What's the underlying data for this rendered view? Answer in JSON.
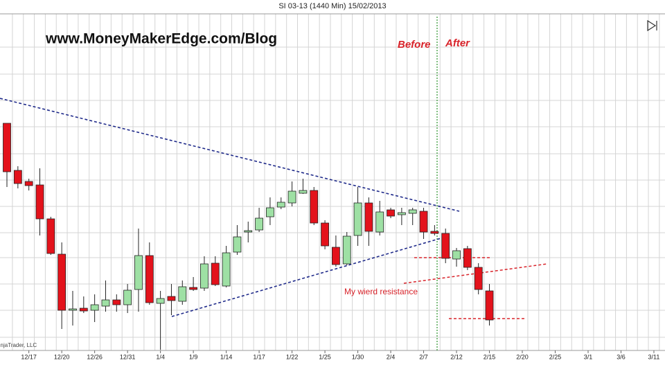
{
  "chart_data": {
    "type": "candlestick",
    "title": "SI 03-13 (1440 Min)  15/02/2013",
    "annotations": {
      "watermark": "www.MoneyMakerEdge.com/Blog",
      "before": "Before",
      "after": "After",
      "resistance": "My wierd resistance",
      "copyright": "NinjaTrader, LLC"
    },
    "categories": [
      null,
      null,
      "12/17",
      null,
      null,
      "12/20",
      null,
      null,
      "12/26",
      null,
      null,
      "12/31",
      null,
      null,
      "1/4",
      null,
      null,
      "1/9",
      null,
      null,
      "1/14",
      null,
      null,
      "1/17",
      null,
      null,
      "1/22",
      null,
      null,
      "1/25",
      null,
      null,
      "1/30",
      null,
      null,
      "2/4",
      null,
      null,
      "2/7",
      null,
      null,
      "2/12",
      null,
      null,
      "2/15",
      null,
      null,
      "2/20",
      null,
      null,
      "2/25",
      null,
      null,
      "3/1",
      null,
      null,
      "3/6",
      null,
      null,
      "3/11"
    ],
    "open": [
      33.2,
      26.4,
      24.8,
      24.3,
      19.4,
      14.3,
      6.2,
      6.5,
      6.2,
      6.8,
      7.7,
      7.0,
      9.2,
      14.1,
      7.2,
      8.2,
      7.5,
      9.5,
      9.4,
      13.0,
      9.7,
      14.6,
      17.5,
      17.8,
      19.7,
      21.1,
      21.7,
      23.1,
      23.5,
      18.8,
      15.3,
      12.9,
      17.0,
      21.7,
      17.5,
      20.7,
      20.0,
      20.2,
      20.5,
      17.6,
      17.3,
      13.6,
      15.1,
      12.4,
      9.0,
      null,
      null,
      null,
      null,
      null,
      null,
      null,
      null,
      null,
      null,
      null,
      null,
      null,
      null,
      null
    ],
    "high": [
      33.2,
      27.0,
      25.2,
      26.7,
      19.7,
      16.0,
      9.0,
      8.2,
      8.5,
      10.5,
      8.5,
      10.0,
      18.0,
      16.0,
      9.0,
      10.0,
      10.5,
      11.0,
      14.0,
      14.0,
      15.5,
      18.5,
      19.0,
      21.0,
      22.5,
      22.5,
      24.8,
      25.2,
      24.0,
      19.2,
      17.0,
      17.5,
      24.0,
      22.5,
      22.0,
      21.0,
      21.0,
      21.0,
      21.0,
      18.5,
      18.0,
      15.2,
      15.5,
      13.0,
      10.0,
      null,
      null,
      null,
      null,
      null,
      null,
      null,
      null,
      null,
      null,
      null,
      null,
      null,
      null,
      null
    ],
    "low": [
      24.0,
      23.8,
      23.5,
      17.0,
      14.2,
      3.5,
      4.0,
      5.8,
      4.5,
      6.0,
      6.0,
      5.8,
      6.0,
      7.0,
      0.5,
      5.5,
      7.0,
      9.0,
      9.0,
      9.7,
      9.5,
      14.2,
      16.0,
      17.5,
      18.5,
      20.8,
      21.2,
      23.0,
      18.5,
      15.0,
      12.5,
      12.7,
      15.5,
      15.5,
      17.0,
      19.5,
      18.5,
      18.5,
      16.5,
      17.0,
      13.0,
      12.5,
      12.0,
      8.5,
      4.0,
      null,
      null,
      null,
      null,
      null,
      null,
      null,
      null,
      null,
      null,
      null,
      null,
      null,
      null,
      null
    ],
    "close": [
      26.2,
      24.5,
      24.2,
      19.4,
      14.4,
      6.2,
      6.4,
      6.1,
      7.0,
      7.7,
      7.0,
      9.1,
      14.1,
      7.3,
      7.9,
      7.6,
      9.6,
      9.2,
      12.9,
      9.9,
      14.5,
      16.8,
      17.7,
      19.5,
      21.0,
      21.8,
      23.4,
      23.5,
      18.8,
      15.5,
      12.8,
      16.9,
      21.7,
      17.6,
      20.4,
      19.8,
      20.3,
      20.7,
      17.5,
      17.3,
      13.7,
      14.8,
      12.4,
      9.2,
      4.8,
      null,
      null,
      null,
      null,
      null,
      null,
      null,
      null,
      null,
      null,
      null,
      null,
      null,
      null,
      null
    ],
    "up_color": "#9ee0a4",
    "down_color": "#e3121b",
    "ylim": [
      0,
      49
    ],
    "yticks": [
      2.3,
      6.2,
      10.0,
      13.8,
      17.4,
      21.2,
      25.0,
      28.8,
      32.7,
      36.5,
      40.3,
      44.2
    ],
    "grid": true
  }
}
